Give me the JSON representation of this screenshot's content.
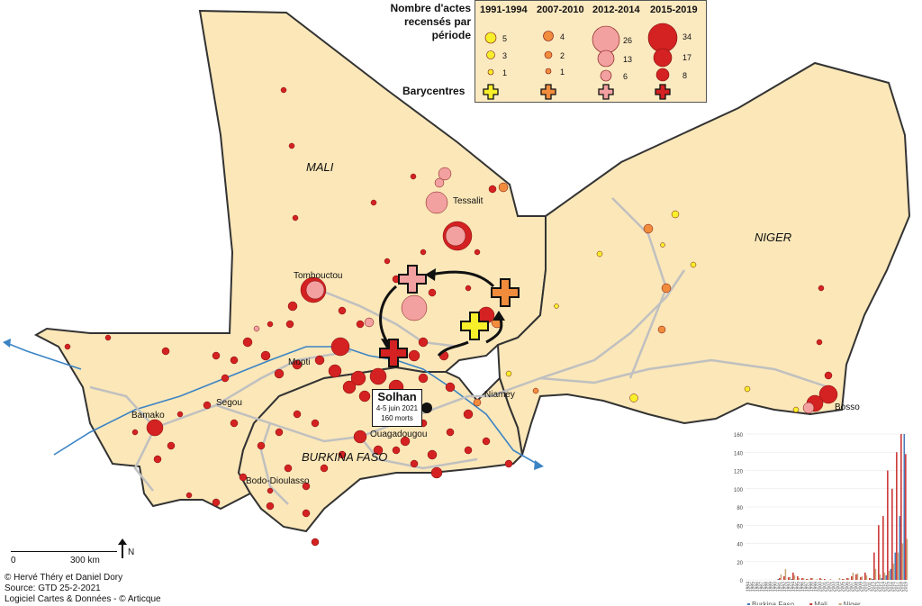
{
  "map": {
    "countries": [
      {
        "name": "MALI"
      },
      {
        "name": "NIGER"
      },
      {
        "name": "BURKINA FASO"
      }
    ],
    "cities": [
      "Tessalit",
      "Tombouctou",
      "Mopti",
      "Segou",
      "Bamako",
      "Ouagadougou",
      "Bodo-Dioulasso",
      "Niamey",
      "Bosso"
    ],
    "colors": {
      "land": "#fbe7b8",
      "border": "#333333",
      "road": "#c0c0c0",
      "river": "#3b84c4",
      "p1991": "#f7ef2a",
      "p2007": "#f08c3c",
      "p2012": "#f2a0a0",
      "p2015": "#d42121"
    }
  },
  "legend": {
    "title": "Nombre d'actes recensés par période",
    "periods": [
      {
        "label": "1991-1994",
        "values": [
          "5",
          "3",
          "1"
        ],
        "color": "#f7ef2a"
      },
      {
        "label": "2007-2010",
        "values": [
          "4",
          "2",
          "1"
        ],
        "color": "#f08c3c"
      },
      {
        "label": "2012-2014",
        "values": [
          "26",
          "13",
          "6"
        ],
        "color": "#f2a0a0"
      },
      {
        "label": "2015-2019",
        "values": [
          "34",
          "17",
          "8"
        ],
        "color": "#d42121"
      }
    ],
    "barycentres_label": "Barycentres"
  },
  "solhan": {
    "title": "Solhan",
    "date": "4-5 juin 2021",
    "deaths": "160 morts"
  },
  "scale": {
    "left": "0",
    "right": "300 km",
    "north": "N"
  },
  "credits": [
    "© Hervé Théry et Daniel Dory",
    "Source: GTD 25-2-2021",
    "Logiciel Cartes & Données - © Articque"
  ],
  "chart_data": {
    "type": "bar",
    "categories": [
      "1984",
      "1985",
      "1986",
      "1987",
      "1988",
      "1989",
      "1990",
      "1991",
      "1992",
      "1993",
      "1994",
      "1995",
      "1996",
      "1997",
      "1998",
      "1999",
      "2000",
      "2001",
      "2002",
      "2003",
      "2004",
      "2005",
      "2006",
      "2007",
      "2008",
      "2009",
      "2010",
      "2011",
      "2012",
      "2013",
      "2014",
      "2015",
      "2016",
      "2017",
      "2018",
      "2019"
    ],
    "series": [
      {
        "name": "Burkina Faso",
        "color": "#4a7ab8",
        "values": [
          0,
          0,
          0,
          0,
          0,
          0,
          0,
          1,
          0,
          0,
          1,
          0,
          0,
          0,
          0,
          0,
          0,
          0,
          0,
          0,
          0,
          0,
          0,
          0,
          0,
          0,
          0,
          0,
          1,
          0,
          2,
          5,
          12,
          30,
          70,
          160
        ]
      },
      {
        "name": "Mali",
        "color": "#cc3333",
        "values": [
          0,
          0,
          0,
          0,
          0,
          0,
          0,
          2,
          4,
          3,
          8,
          4,
          2,
          1,
          2,
          0,
          2,
          1,
          0,
          0,
          0,
          1,
          2,
          4,
          6,
          3,
          8,
          2,
          30,
          60,
          70,
          120,
          100,
          140,
          160,
          138
        ]
      },
      {
        "name": "Niger",
        "color": "#c8a878",
        "values": [
          0,
          0,
          0,
          0,
          0,
          0,
          0,
          6,
          12,
          3,
          5,
          2,
          2,
          1,
          2,
          1,
          1,
          0,
          1,
          0,
          2,
          1,
          2,
          8,
          7,
          4,
          5,
          2,
          12,
          6,
          8,
          10,
          18,
          30,
          40,
          45
        ]
      }
    ],
    "ylim": [
      0,
      160
    ],
    "yticks": [
      "0",
      "20",
      "40",
      "60",
      "80",
      "100",
      "120",
      "140",
      "160"
    ],
    "legend": "bottom"
  }
}
